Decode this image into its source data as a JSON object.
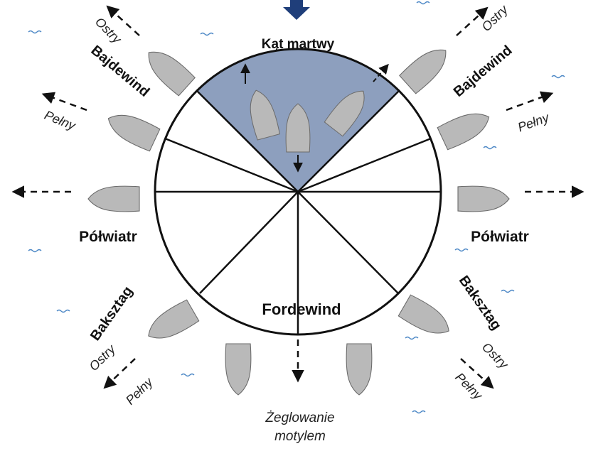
{
  "labels": {
    "dead_zone": "Kąt martwy",
    "bajdewind_left": "Bajdewind",
    "bajdewind_right": "Bajdewind",
    "ostry_top_left": "Ostry",
    "ostry_top_right": "Ostry",
    "pelny_top_left": "Pełny",
    "pelny_top_right": "Pełny",
    "polwiatr_left": "Półwiatr",
    "polwiatr_right": "Półwiatr",
    "baksztag_left": "Baksztag",
    "baksztag_right": "Baksztag",
    "ostry_bottom_left": "Ostry",
    "ostry_bottom_right": "Ostry",
    "pelny_bottom_left": "Pełny",
    "pelny_bottom_right": "Pełny",
    "fordewind": "Fordewind",
    "butterfly_line1": "Żeglowanie",
    "butterfly_line2": "motylem"
  },
  "colors": {
    "wind_arrow": "#1f3e7a",
    "dead_zone_fill": "#8d9fbe",
    "hull": "#b9b9b9",
    "waves": "#4a86c5",
    "outline": "#111111"
  }
}
